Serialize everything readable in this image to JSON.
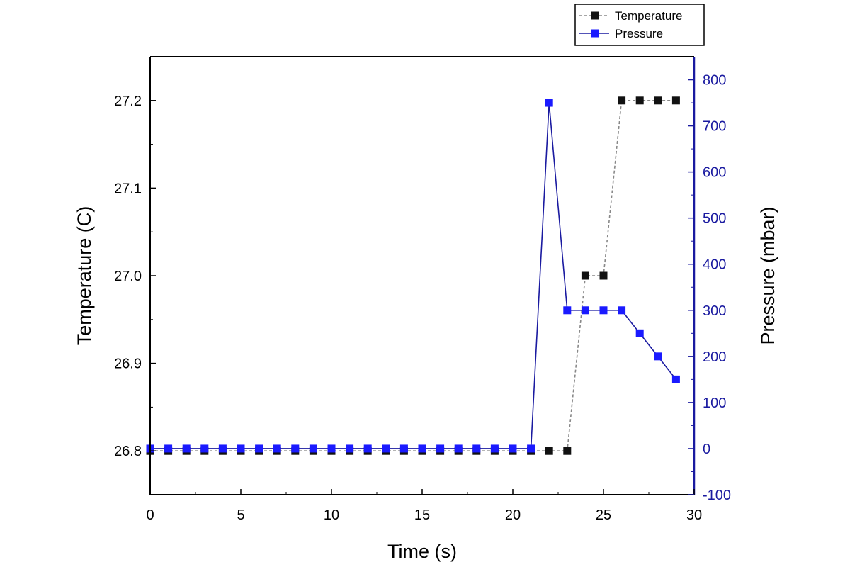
{
  "chart_data": {
    "type": "line",
    "xlabel": "Time (s)",
    "ylabel_left": "Temperature (C)",
    "ylabel_right": "Pressure (mbar)",
    "xlim": [
      0,
      30
    ],
    "ylim_left": [
      26.75,
      27.25
    ],
    "ylim_right": [
      -100,
      850
    ],
    "x_ticks": [
      0,
      5,
      10,
      15,
      20,
      25,
      30
    ],
    "x_tick_labels": [
      "0",
      "5",
      "10",
      "15",
      "20",
      "25",
      "30"
    ],
    "y_left_ticks": [
      26.8,
      26.9,
      27.0,
      27.1,
      27.2
    ],
    "y_left_tick_labels": [
      "26.8",
      "26.9",
      "27.0",
      "27.1",
      "27.2"
    ],
    "y_right_ticks": [
      -100,
      0,
      100,
      200,
      300,
      400,
      500,
      600,
      700,
      800
    ],
    "y_right_tick_labels": [
      "-100",
      "0",
      "100",
      "200",
      "300",
      "400",
      "500",
      "600",
      "700",
      "800"
    ],
    "grid": false,
    "legend_position": "top-right",
    "x": [
      0,
      1,
      2,
      3,
      4,
      5,
      6,
      7,
      8,
      9,
      10,
      11,
      12,
      13,
      14,
      15,
      16,
      17,
      18,
      19,
      20,
      21,
      22,
      23,
      24,
      25,
      26,
      27,
      28,
      29
    ],
    "series": [
      {
        "name": "Temperature",
        "axis": "left",
        "color": "#111111",
        "line_color": "#888888",
        "line_style": "dashed",
        "values": [
          26.8,
          26.8,
          26.8,
          26.8,
          26.8,
          26.8,
          26.8,
          26.8,
          26.8,
          26.8,
          26.8,
          26.8,
          26.8,
          26.8,
          26.8,
          26.8,
          26.8,
          26.8,
          26.8,
          26.8,
          26.8,
          26.8,
          26.8,
          26.8,
          27.0,
          27.0,
          27.2,
          27.2,
          27.2,
          27.2
        ]
      },
      {
        "name": "Pressure",
        "axis": "right",
        "color": "#1a1aff",
        "line_color": "#1a1aa0",
        "line_style": "solid",
        "values": [
          0,
          0,
          0,
          0,
          0,
          0,
          0,
          0,
          0,
          0,
          0,
          0,
          0,
          0,
          0,
          0,
          0,
          0,
          0,
          0,
          0,
          0,
          750,
          300,
          300,
          300,
          300,
          250,
          200,
          150
        ]
      }
    ]
  },
  "colors": {
    "right_axis": "#1a1aa0",
    "left_axis": "#000000"
  }
}
